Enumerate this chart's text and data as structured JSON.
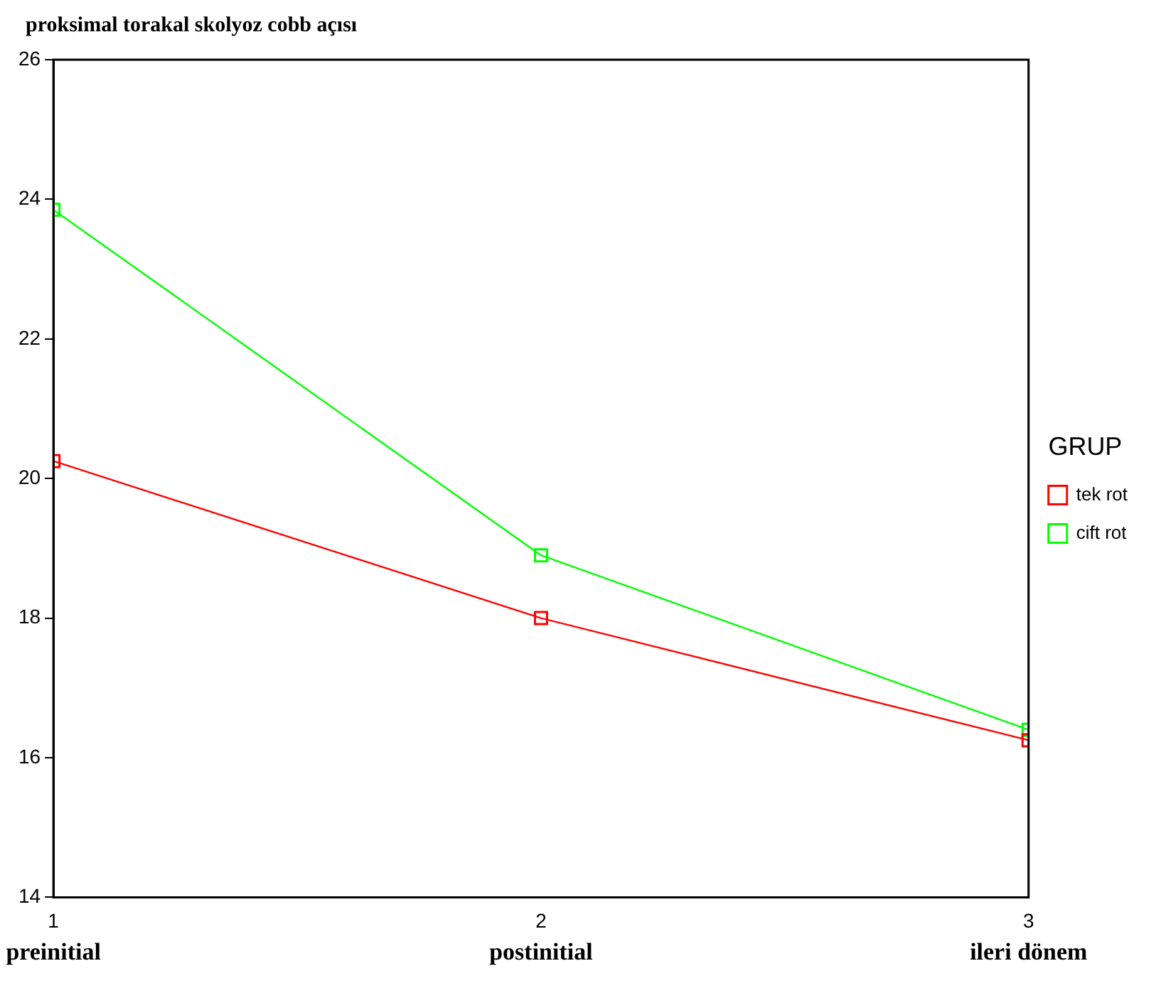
{
  "chart_data": {
    "type": "line",
    "title": "proksimal torakal skolyoz cobb açısı",
    "x": [
      1,
      2,
      3
    ],
    "xlim": [
      1,
      3
    ],
    "xticks": [
      1,
      2,
      3
    ],
    "ylim": [
      14,
      26
    ],
    "yticks": [
      14,
      16,
      18,
      20,
      22,
      24,
      26
    ],
    "series": [
      {
        "name": "tek rot",
        "color": "#ff0000",
        "values": [
          20.25,
          18.0,
          16.25
        ]
      },
      {
        "name": "cift rot",
        "color": "#00ff00",
        "values": [
          23.85,
          18.9,
          16.4
        ]
      }
    ],
    "legend_title": "GRUP",
    "legend": "right",
    "marker": "square",
    "grid": false,
    "annotations": [
      "preinitial",
      "postinitial",
      "ileri dönem"
    ]
  }
}
